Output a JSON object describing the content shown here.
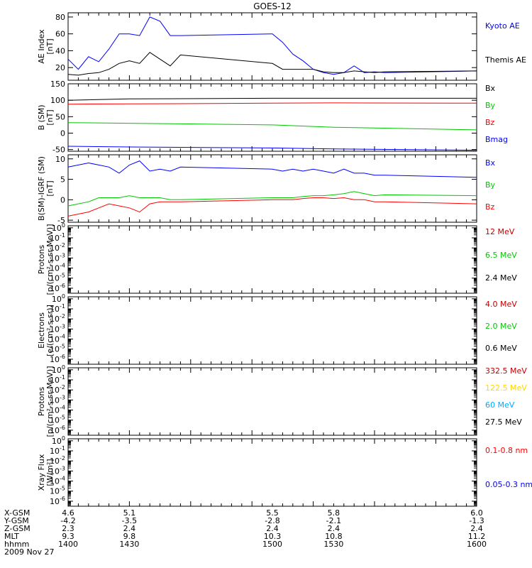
{
  "title": "GOES-12",
  "colors": {
    "black": "#000000",
    "blue": "#0000ff",
    "red": "#ff0000",
    "green": "#00c800",
    "yellow": "#ffd700",
    "cyan": "#00aaff",
    "darkred": "#c00000"
  },
  "chart_data": [
    {
      "type": "line",
      "ylabel": [
        "AE Index",
        "[nT]"
      ],
      "ylim": [
        5,
        85
      ],
      "yticks": [
        20,
        40,
        60,
        80
      ],
      "x": [
        1400,
        1405,
        1410,
        1415,
        1420,
        1425,
        1430,
        1435,
        1440,
        1445,
        1450,
        1455,
        1500,
        1505,
        1510,
        1515,
        1520,
        1525,
        1530,
        1535,
        1540,
        1545,
        1550,
        1555,
        1600
      ],
      "series": [
        {
          "name": "Kyoto AE",
          "color": "blue",
          "values": [
            30,
            18,
            33,
            27,
            42,
            60,
            60,
            58,
            80,
            75,
            58,
            58,
            60,
            50,
            36,
            28,
            18,
            14,
            12,
            14,
            22,
            14,
            15,
            14,
            16
          ]
        },
        {
          "name": "Themis AE",
          "color": "black",
          "values": [
            12,
            11,
            13,
            14,
            18,
            25,
            28,
            25,
            38,
            30,
            22,
            35,
            25,
            18,
            18,
            18,
            18,
            15,
            14,
            14,
            16,
            15,
            14,
            15,
            16
          ]
        }
      ]
    },
    {
      "type": "line",
      "ylabel": [
        "B (SM)",
        "[nT]"
      ],
      "ylim": [
        -55,
        150
      ],
      "yticks": [
        -50,
        0,
        50,
        100,
        150
      ],
      "x": [
        1400,
        1430,
        1500,
        1530,
        1600
      ],
      "series": [
        {
          "name": "Bx",
          "color": "black",
          "values": [
            100,
            104,
            106,
            106,
            106
          ]
        },
        {
          "name": "By",
          "color": "green",
          "values": [
            32,
            30,
            25,
            18,
            10
          ]
        },
        {
          "name": "Bz",
          "color": "red",
          "values": [
            88,
            89,
            91,
            92,
            91
          ]
        },
        {
          "name": "Bmag",
          "color": "blue",
          "values": [
            -40,
            -42,
            -45,
            -48,
            -52
          ]
        }
      ]
    },
    {
      "type": "line",
      "ylabel": [
        "B(SM)-IGRF (SM)",
        "[nT]"
      ],
      "ylim": [
        -5.5,
        11
      ],
      "yticks": [
        -5,
        0,
        5,
        10
      ],
      "x": [
        1400,
        1405,
        1410,
        1415,
        1420,
        1425,
        1430,
        1435,
        1440,
        1445,
        1450,
        1455,
        1500,
        1505,
        1510,
        1515,
        1520,
        1525,
        1530,
        1535,
        1540,
        1545,
        1550,
        1555,
        1600
      ],
      "series": [
        {
          "name": "Bx",
          "color": "blue",
          "values": [
            8,
            8.5,
            9,
            8.5,
            8,
            6.5,
            8.5,
            9.5,
            7,
            7.5,
            7,
            8,
            7.5,
            7,
            7.5,
            7,
            7.5,
            7,
            6.5,
            7.5,
            6.5,
            6.5,
            6,
            6,
            5.5
          ]
        },
        {
          "name": "By",
          "color": "green",
          "values": [
            -1.5,
            -1,
            -0.5,
            0.5,
            0.5,
            0.5,
            1,
            0.5,
            0.5,
            0.5,
            0,
            0,
            0.5,
            0.5,
            0.5,
            0.8,
            1,
            1,
            1.2,
            1.5,
            2,
            1.5,
            1,
            1.2,
            1
          ]
        },
        {
          "name": "Bz",
          "color": "red",
          "values": [
            -4,
            -3.5,
            -3,
            -2,
            -1,
            -1.5,
            -2,
            -3,
            -1,
            -0.5,
            -0.5,
            -0.5,
            0,
            0,
            0,
            0.3,
            0.5,
            0.5,
            0.3,
            0.5,
            0,
            0,
            -0.5,
            -0.5,
            -1
          ]
        }
      ]
    },
    {
      "type": "line",
      "ylabel": [
        "Protons",
        "[p/(cm²-s-sr-MeV)]"
      ],
      "log": true,
      "ylim": [
        -6.5,
        0.2
      ],
      "yticks": [
        -6,
        -5,
        -4,
        -3,
        -2,
        -1,
        0
      ],
      "series": [
        {
          "name": "12 MeV",
          "color": "darkred",
          "values": []
        },
        {
          "name": "6.5 MeV",
          "color": "green",
          "values": []
        },
        {
          "name": "2.4 MeV",
          "color": "black",
          "values": []
        }
      ]
    },
    {
      "type": "line",
      "ylabel": [
        "Electrons",
        "[e/(cm²-s-sr)]"
      ],
      "log": true,
      "ylim": [
        -6.5,
        0.2
      ],
      "yticks": [
        -6,
        -5,
        -4,
        -3,
        -2,
        -1,
        0
      ],
      "series": [
        {
          "name": "4.0 MeV",
          "color": "darkred",
          "values": []
        },
        {
          "name": "2.0 MeV",
          "color": "green",
          "values": []
        },
        {
          "name": "0.6 MeV",
          "color": "black",
          "values": []
        }
      ]
    },
    {
      "type": "line",
      "ylabel": [
        "Protons",
        "[p/(cm²-s-sr-MeV)]"
      ],
      "log": true,
      "ylim": [
        -6.5,
        0.2
      ],
      "yticks": [
        -6,
        -5,
        -4,
        -3,
        -2,
        -1,
        0
      ],
      "series": [
        {
          "name": "332.5 MeV",
          "color": "darkred",
          "values": []
        },
        {
          "name": "122.5 MeV",
          "color": "yellow",
          "values": []
        },
        {
          "name": "60 MeV",
          "color": "cyan",
          "values": []
        },
        {
          "name": "27.5 MeV",
          "color": "black",
          "values": []
        }
      ]
    },
    {
      "type": "line",
      "ylabel": [
        "Xray Flux",
        "[W/m²]"
      ],
      "log": true,
      "ylim": [
        -6.5,
        0.2
      ],
      "yticks": [
        -6,
        -5,
        -4,
        -3,
        -2,
        -1,
        0
      ],
      "series": [
        {
          "name": "0.1-0.8 nm",
          "color": "red",
          "values": []
        },
        {
          "name": "0.05-0.3 nm",
          "color": "blue",
          "values": []
        }
      ]
    }
  ],
  "xaxis": {
    "row_labels": [
      "X-GSM",
      "Y-GSM",
      "Z-GSM",
      "MLT",
      "hhmm"
    ],
    "ticks": [
      {
        "x": 1400,
        "values": [
          "4.6",
          "-4.2",
          "2.3",
          "9.3",
          "1400"
        ]
      },
      {
        "x": 1430,
        "values": [
          "5.1",
          "-3.5",
          "2.4",
          "9.8",
          "1430"
        ]
      },
      {
        "x": 1500,
        "values": [
          "5.5",
          "-2.8",
          "2.4",
          "10.3",
          "1500"
        ]
      },
      {
        "x": 1530,
        "values": [
          "5.8",
          "-2.1",
          "2.4",
          "10.8",
          "1530"
        ]
      },
      {
        "x": 1600,
        "values": [
          "6.0",
          "-1.3",
          "2.4",
          "11.2",
          "1600"
        ]
      }
    ],
    "date": "2009 Nov 27"
  }
}
